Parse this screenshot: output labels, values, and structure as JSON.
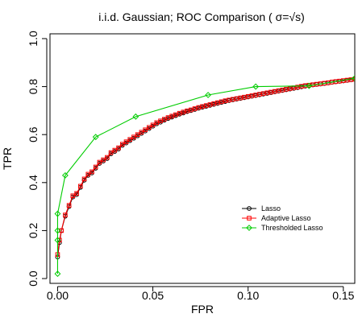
{
  "chart_data": {
    "type": "line",
    "title": "i.i.d. Gaussian; ROC Comparison ( σ=√s)",
    "xlabel": "FPR",
    "ylabel": "TPR",
    "xlim": [
      -0.004,
      0.156
    ],
    "ylim": [
      -0.02,
      1.02
    ],
    "xticks": [
      0.0,
      0.05,
      0.1,
      0.15
    ],
    "xtick_labels": [
      "0.00",
      "0.05",
      "0.10",
      "0.15"
    ],
    "yticks": [
      0.0,
      0.2,
      0.4,
      0.6,
      0.8,
      1.0
    ],
    "ytick_labels": [
      "0.0",
      "0.2",
      "0.4",
      "0.6",
      "0.8",
      "1.0"
    ],
    "grid": false,
    "legend_position": "bottom-right",
    "series": [
      {
        "name": "Lasso",
        "color": "#000000",
        "marker": "circle",
        "x": [
          0.0,
          0.001,
          0.002,
          0.004,
          0.006,
          0.008,
          0.01,
          0.012,
          0.014,
          0.016,
          0.018,
          0.02,
          0.022,
          0.024,
          0.026,
          0.028,
          0.03,
          0.032,
          0.034,
          0.036,
          0.038,
          0.04,
          0.042,
          0.044,
          0.046,
          0.048,
          0.05,
          0.052,
          0.054,
          0.056,
          0.058,
          0.06,
          0.062,
          0.064,
          0.066,
          0.068,
          0.07,
          0.072,
          0.074,
          0.076,
          0.078,
          0.08,
          0.082,
          0.084,
          0.086,
          0.088,
          0.09,
          0.092,
          0.094,
          0.096,
          0.098,
          0.1,
          0.102,
          0.104,
          0.106,
          0.108,
          0.11,
          0.112,
          0.114,
          0.116,
          0.118,
          0.12,
          0.122,
          0.124,
          0.126,
          0.128,
          0.13,
          0.132,
          0.134,
          0.136,
          0.138,
          0.14,
          0.142,
          0.144,
          0.146,
          0.148,
          0.15,
          0.152,
          0.154,
          0.156
        ],
        "y": [
          0.09,
          0.15,
          0.2,
          0.26,
          0.3,
          0.34,
          0.35,
          0.38,
          0.41,
          0.43,
          0.44,
          0.46,
          0.48,
          0.49,
          0.5,
          0.52,
          0.53,
          0.54,
          0.555,
          0.565,
          0.575,
          0.585,
          0.595,
          0.605,
          0.615,
          0.625,
          0.635,
          0.645,
          0.652,
          0.66,
          0.667,
          0.673,
          0.679,
          0.685,
          0.69,
          0.696,
          0.7,
          0.705,
          0.71,
          0.714,
          0.718,
          0.722,
          0.726,
          0.73,
          0.734,
          0.738,
          0.742,
          0.745,
          0.748,
          0.751,
          0.754,
          0.757,
          0.76,
          0.763,
          0.766,
          0.769,
          0.772,
          0.775,
          0.778,
          0.781,
          0.784,
          0.787,
          0.79,
          0.793,
          0.796,
          0.799,
          0.802,
          0.805,
          0.807,
          0.809,
          0.811,
          0.813,
          0.815,
          0.818,
          0.82,
          0.822,
          0.824,
          0.826,
          0.828,
          0.83
        ]
      },
      {
        "name": "Adaptive Lasso",
        "color": "#ff0000",
        "marker": "square",
        "x": [
          0.0,
          0.001,
          0.002,
          0.004,
          0.006,
          0.008,
          0.01,
          0.012,
          0.014,
          0.016,
          0.018,
          0.02,
          0.022,
          0.024,
          0.026,
          0.028,
          0.03,
          0.032,
          0.034,
          0.036,
          0.038,
          0.04,
          0.042,
          0.044,
          0.046,
          0.048,
          0.05,
          0.052,
          0.054,
          0.056,
          0.058,
          0.06,
          0.062,
          0.064,
          0.066,
          0.068,
          0.07,
          0.072,
          0.074,
          0.076,
          0.078,
          0.08,
          0.082,
          0.084,
          0.086,
          0.088,
          0.09,
          0.092,
          0.094,
          0.096,
          0.098,
          0.1,
          0.102,
          0.104,
          0.106,
          0.108,
          0.11,
          0.112,
          0.114,
          0.116,
          0.118,
          0.12,
          0.122,
          0.124,
          0.126,
          0.128,
          0.13,
          0.132,
          0.134,
          0.136,
          0.138,
          0.14,
          0.142,
          0.144,
          0.146,
          0.148,
          0.15,
          0.152,
          0.154,
          0.156
        ],
        "y": [
          0.1,
          0.16,
          0.2,
          0.265,
          0.305,
          0.345,
          0.355,
          0.385,
          0.415,
          0.435,
          0.445,
          0.465,
          0.485,
          0.495,
          0.505,
          0.525,
          0.535,
          0.545,
          0.56,
          0.57,
          0.58,
          0.59,
          0.6,
          0.61,
          0.62,
          0.63,
          0.64,
          0.65,
          0.657,
          0.664,
          0.671,
          0.677,
          0.683,
          0.689,
          0.694,
          0.699,
          0.703,
          0.708,
          0.713,
          0.717,
          0.721,
          0.725,
          0.729,
          0.733,
          0.737,
          0.741,
          0.744,
          0.747,
          0.75,
          0.753,
          0.756,
          0.759,
          0.762,
          0.765,
          0.768,
          0.771,
          0.774,
          0.777,
          0.78,
          0.783,
          0.786,
          0.789,
          0.792,
          0.795,
          0.798,
          0.801,
          0.804,
          0.806,
          0.808,
          0.81,
          0.812,
          0.814,
          0.816,
          0.819,
          0.821,
          0.823,
          0.825,
          0.827,
          0.829,
          0.831
        ]
      },
      {
        "name": "Thresholded Lasso",
        "color": "#00cc00",
        "marker": "diamond",
        "x": [
          0.0,
          0.0,
          0.0,
          0.0,
          0.004,
          0.02,
          0.041,
          0.079,
          0.104,
          0.132,
          0.156
        ],
        "y": [
          0.02,
          0.16,
          0.2,
          0.27,
          0.43,
          0.59,
          0.675,
          0.765,
          0.8,
          0.803,
          0.835
        ]
      }
    ]
  }
}
